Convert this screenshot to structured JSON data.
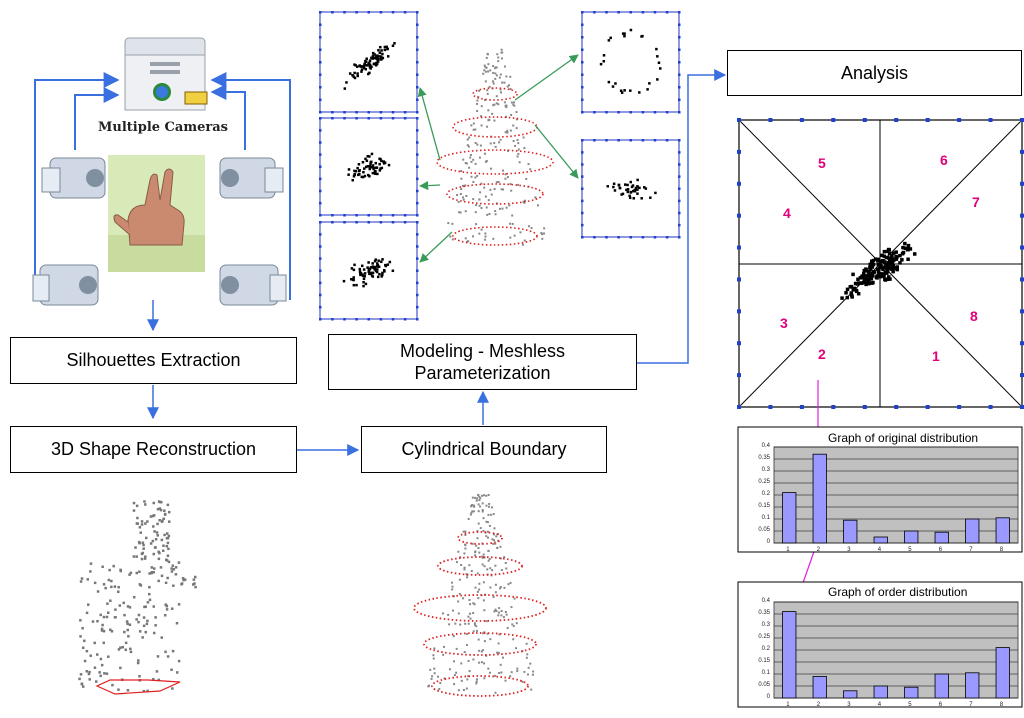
{
  "labels": {
    "multiple_cameras": "Multiple Cameras",
    "silhouettes": "Silhouettes Extraction",
    "reconstruction": "3D Shape Reconstruction",
    "cylindrical": "Cylindrical Boundary",
    "modeling_line1": "Modeling - Meshless",
    "modeling_line2": "Parameterization",
    "analysis": "Analysis"
  },
  "sector_labels": [
    "1",
    "2",
    "3",
    "4",
    "5",
    "6",
    "7",
    "8"
  ],
  "colors": {
    "arrow_blue": "#3a6fe0",
    "arrow_green": "#3a9a5a",
    "arrow_magenta": "#e020e0",
    "ring_red": "#e02020",
    "bar_fill": "#9999ff",
    "plot_bg": "#c0c0c0",
    "sector_text": "#e0007a"
  },
  "chart_data": [
    {
      "type": "bar",
      "title": "Graph of original distribution",
      "categories": [
        "1",
        "2",
        "3",
        "4",
        "5",
        "6",
        "7",
        "8"
      ],
      "values": [
        0.21,
        0.37,
        0.095,
        0.025,
        0.05,
        0.045,
        0.1,
        0.105
      ],
      "ylim": [
        0,
        0.4
      ],
      "yticks": [
        "0",
        "0.05",
        "0.1",
        "0.15",
        "0.2",
        "0.25",
        "0.3",
        "0.35",
        "0.4"
      ],
      "grid": true
    },
    {
      "type": "bar",
      "title": "Graph of order distribution",
      "categories": [
        "1",
        "2",
        "3",
        "4",
        "5",
        "6",
        "7",
        "8"
      ],
      "values": [
        0.36,
        0.09,
        0.03,
        0.05,
        0.045,
        0.1,
        0.105,
        0.21
      ],
      "ylim": [
        0,
        0.4
      ],
      "yticks": [
        "0",
        "0.05",
        "0.1",
        "0.15",
        "0.2",
        "0.25",
        "0.3",
        "0.35",
        "0.4"
      ],
      "grid": true
    }
  ]
}
